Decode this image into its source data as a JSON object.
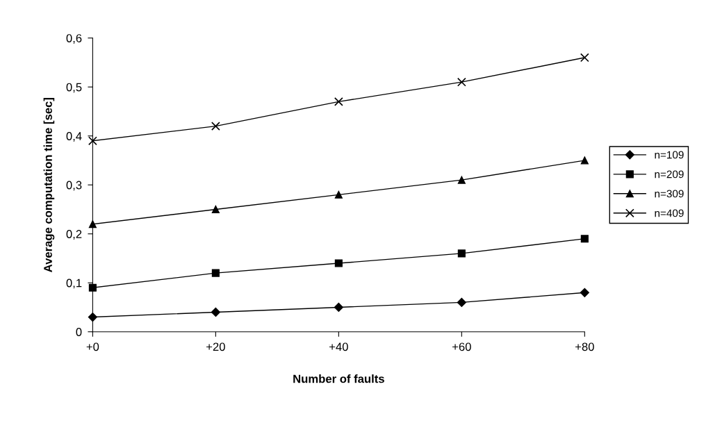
{
  "chart_data": {
    "type": "line",
    "xlabel": "Number of faults",
    "ylabel": "Average computation time [sec]",
    "categories": [
      "+0",
      "+20",
      "+40",
      "+60",
      "+80"
    ],
    "series": [
      {
        "name": "n=109",
        "color": "#000000",
        "marker": "diamond",
        "values": [
          0.03,
          0.04,
          0.05,
          0.06,
          0.08
        ]
      },
      {
        "name": "n=209",
        "color": "#000000",
        "marker": "square",
        "values": [
          0.09,
          0.12,
          0.14,
          0.16,
          0.19
        ]
      },
      {
        "name": "n=309",
        "color": "#000000",
        "marker": "triangle",
        "values": [
          0.22,
          0.25,
          0.28,
          0.31,
          0.35
        ]
      },
      {
        "name": "n=409",
        "color": "#000000",
        "marker": "cross",
        "values": [
          0.39,
          0.42,
          0.47,
          0.51,
          0.56
        ]
      }
    ],
    "ylim": [
      0,
      0.6
    ],
    "yticks": [
      0,
      {
        "value": 0.1,
        "label": "0,1"
      },
      {
        "value": 0.2,
        "label": "0,2"
      },
      {
        "value": 0.3,
        "label": "0,3"
      },
      {
        "value": 0.4,
        "label": "0,4"
      },
      {
        "value": 0.5,
        "label": "0,5"
      },
      {
        "value": 0.6,
        "label": "0,6"
      }
    ],
    "grid": false,
    "legend": "right",
    "line_style": "solid"
  }
}
